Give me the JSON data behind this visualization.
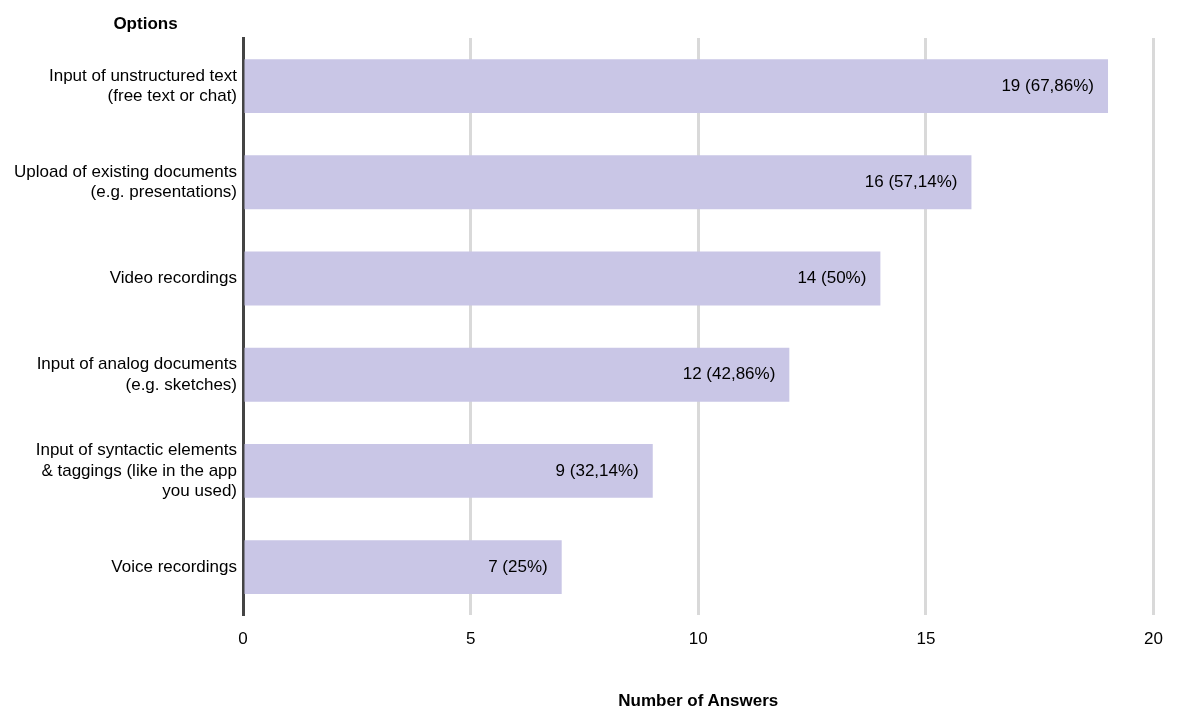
{
  "chart_data": {
    "type": "bar",
    "orientation": "horizontal",
    "ylabel": "Options",
    "xlabel": "Number of Answers",
    "categories": [
      "Input of unstructured text\n(free text or chat)",
      "Upload of existing documents\n(e.g. presentations)",
      "Video recordings",
      "Input of analog documents\n(e.g. sketches)",
      "Input of syntactic elements\n& taggings (like in the app\nyou used)",
      "Voice recordings"
    ],
    "values": [
      19,
      16,
      14,
      12,
      9,
      7
    ],
    "value_labels": [
      "19 (67,86%)",
      "16 (57,14%)",
      "14 (50%)",
      "12 (42,86%)",
      "9 (32,14%)",
      "7 (25%)"
    ],
    "color": "#c9c6e6",
    "xlim": [
      0,
      20
    ],
    "xticks": [
      0,
      5,
      10,
      15,
      20
    ],
    "grid": "x",
    "legend": false
  }
}
